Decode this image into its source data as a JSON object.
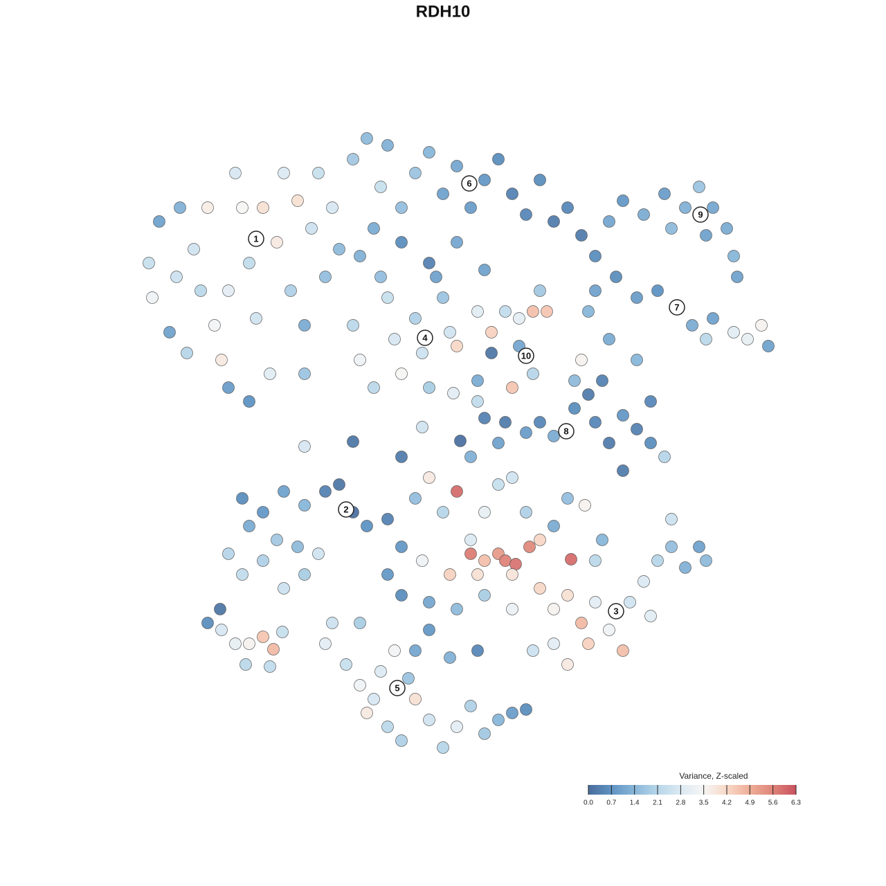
{
  "chart_data": {
    "type": "scatter",
    "title": "RDH10",
    "legend_title": "Variance, Z-scaled",
    "xlim": [
      0,
      128
    ],
    "ylim": [
      0,
      128
    ],
    "clim": [
      0,
      6.3
    ],
    "colorscale": [
      "#4a6d9c",
      "#5f93c3",
      "#88b6d9",
      "#b7d6e9",
      "#dceaf3",
      "#f6f5f4",
      "#f8d8c7",
      "#eeae97",
      "#de8479",
      "#c9515f"
    ],
    "cticks": [
      {
        "value": 0,
        "label": "0.0"
      },
      0.7,
      1.4,
      2.1,
      2.8,
      3.5,
      4.2,
      4.9,
      5.6,
      6.3
    ],
    "x": [
      23,
      21.5,
      22,
      24.5,
      26,
      28,
      29,
      30,
      31,
      32,
      33,
      34,
      35,
      36,
      37,
      38,
      39,
      40,
      41,
      42,
      43,
      44,
      45,
      46,
      47,
      48,
      49,
      36,
      27,
      33,
      25.5,
      44,
      51,
      53,
      55,
      56,
      58,
      60,
      62,
      64,
      66,
      68,
      70,
      72,
      74,
      76,
      78,
      80,
      82,
      84,
      86,
      54,
      58,
      62,
      66,
      70,
      52,
      88,
      90,
      93,
      96,
      99,
      101,
      103,
      105,
      106,
      106.5,
      97,
      102,
      86,
      89,
      92,
      95,
      98,
      100,
      103,
      106,
      108,
      110,
      111,
      102,
      88,
      92,
      85,
      51,
      52,
      54,
      56,
      57,
      58,
      60,
      61,
      62,
      64,
      65,
      66,
      63,
      55,
      69,
      71,
      73,
      75,
      77,
      79,
      75,
      77,
      74,
      71,
      78,
      69,
      83,
      85,
      87,
      83,
      86,
      88,
      90,
      92,
      94,
      96,
      90,
      94,
      78,
      80,
      76,
      84,
      73,
      44,
      51,
      58,
      61,
      66.5,
      70,
      65.5,
      69,
      35,
      38,
      41,
      44,
      47,
      49,
      51,
      36,
      40,
      43,
      33,
      35,
      38,
      41,
      44,
      46,
      53,
      56,
      58,
      60,
      62,
      64,
      66,
      68,
      70,
      72,
      74,
      76,
      78,
      80,
      82,
      84.5,
      68,
      70,
      72,
      73,
      74.5,
      76.5,
      82.5,
      65,
      69,
      74,
      61,
      56,
      58,
      62,
      66,
      70,
      74,
      68,
      72,
      78,
      80,
      82,
      84,
      86,
      88,
      90,
      91,
      93,
      95,
      97,
      99,
      101,
      102,
      94,
      86,
      80,
      82,
      77,
      85,
      87,
      97,
      48,
      47,
      50,
      52,
      54,
      53,
      56,
      58,
      60,
      62,
      64,
      66,
      68,
      70,
      72,
      74,
      76,
      60,
      62,
      65,
      69,
      57,
      55,
      59,
      52,
      30,
      32,
      34,
      36,
      38,
      39.5,
      35.5,
      39,
      40.8,
      31.8
    ],
    "y": [
      96,
      90,
      85,
      80,
      98,
      92,
      86,
      98,
      81,
      76,
      72,
      103,
      98,
      90,
      82,
      98,
      74,
      93,
      103,
      86,
      99,
      81,
      95,
      103,
      88,
      98,
      92,
      70,
      77,
      86,
      88,
      74,
      105,
      108,
      101,
      107,
      98,
      103,
      106,
      100,
      104,
      98,
      102,
      105,
      100,
      97,
      102,
      96,
      98,
      94,
      91,
      95,
      93,
      90,
      93,
      89,
      91,
      96,
      99,
      97,
      100,
      98,
      101,
      98,
      95,
      91,
      88,
      95,
      94,
      86,
      88,
      85,
      86,
      83.5,
      81,
      82,
      80,
      79,
      81,
      78,
      79,
      79,
      76,
      83,
      81,
      76,
      72,
      85,
      79,
      74,
      82,
      77,
      72,
      85,
      80,
      78,
      88,
      88,
      83,
      80,
      83,
      82,
      83,
      83,
      78,
      74,
      72,
      77,
      86,
      73,
      73,
      71,
      73,
      69,
      67,
      64,
      68,
      66,
      64,
      62,
      60,
      70,
      67,
      65,
      65.5,
      76,
      67,
      63.5,
      64.2,
      62,
      66.3,
      64.3,
      67.6,
      71.2,
      70,
      56,
      54,
      57,
      55,
      57,
      58,
      54,
      52,
      50,
      49,
      48,
      45,
      47,
      43,
      45,
      48,
      52,
      53,
      49,
      56,
      59,
      54,
      57,
      50,
      54,
      58,
      59,
      54,
      50,
      52,
      56,
      55,
      48,
      47,
      48,
      47,
      46.5,
      49,
      47.2,
      45,
      45,
      45,
      47,
      45,
      42,
      41,
      40,
      42,
      40,
      62,
      64,
      43,
      40,
      42,
      38,
      41,
      37,
      34,
      41,
      44,
      47,
      49,
      46,
      49,
      47,
      39,
      47,
      35,
      32,
      34,
      35,
      50,
      53,
      38,
      35,
      32,
      29,
      27,
      25,
      23,
      21,
      27,
      24,
      20,
      23,
      26,
      22,
      24,
      25,
      25.5,
      34,
      37,
      33,
      34,
      34,
      31,
      30,
      38,
      38,
      37,
      35,
      35,
      36,
      34.2,
      32,
      31.7,
      36.7,
      40
    ],
    "values": [
      1.0,
      2.4,
      3.3,
      1.0,
      1.3,
      2.6,
      2.2,
      3.7,
      3.4,
      3.8,
      0.9,
      2.7,
      3.5,
      2.3,
      2.6,
      4.0,
      2.9,
      3.8,
      2.8,
      2.0,
      4.0,
      1.2,
      2.5,
      2.4,
      1.6,
      2.7,
      1.5,
      0.7,
      2.1,
      3.0,
      2.5,
      1.7,
      1.8,
      1.5,
      2.4,
      1.3,
      1.6,
      1.7,
      1.4,
      1.0,
      1.1,
      0.9,
      0.8,
      0.6,
      0.4,
      0.5,
      0.6,
      0.3,
      0.5,
      0.3,
      0.6,
      1.2,
      0.6,
      0.4,
      1.1,
      1.0,
      1.3,
      1.1,
      0.8,
      1.2,
      0.9,
      1.3,
      1.7,
      1.1,
      1.2,
      1.4,
      1.0,
      1.5,
      1.0,
      1.0,
      0.6,
      0.9,
      0.7,
      2.6,
      1.2,
      1.0,
      2.9,
      3.1,
      3.6,
      1.0,
      2.2,
      1.2,
      1.4,
      1.4,
      2.2,
      3.3,
      2.2,
      2.4,
      2.7,
      3.5,
      2.0,
      2.5,
      1.9,
      1.7,
      2.6,
      4.2,
      1.0,
      1.6,
      2.9,
      4.3,
      2.3,
      3.0,
      4.6,
      4.5,
      1.1,
      2.1,
      4.5,
      0.2,
      1.8,
      1.2,
      1.5,
      0.3,
      0.4,
      0.6,
      0.5,
      0.3,
      0.8,
      0.4,
      0.6,
      2.1,
      0.3,
      0.5,
      0.5,
      1.2,
      0.9,
      3.6,
      0.3,
      2.7,
      0.2,
      0.3,
      2.6,
      0.1,
      0.4,
      3.0,
      2.3,
      0.6,
      0.8,
      1.0,
      1.4,
      0.4,
      0.2,
      0.1,
      1.2,
      1.8,
      1.5,
      2.1,
      2.3,
      2.0,
      2.5,
      1.9,
      2.6,
      0.7,
      0.4,
      0.8,
      1.6,
      3.8,
      2.1,
      5.9,
      2.8,
      3.1,
      2.4,
      2.6,
      2.0,
      4.2,
      1.2,
      1.6,
      3.6,
      5.7,
      4.6,
      5.2,
      5.6,
      5.8,
      5.5,
      5.9,
      4.3,
      4.0,
      3.9,
      3.3,
      0.8,
      0.6,
      1.1,
      1.5,
      1.9,
      3.2,
      1.3,
      1.0,
      4.2,
      3.6,
      4.0,
      4.7,
      3.0,
      3.3,
      4.6,
      2.6,
      2.8,
      2.1,
      1.6,
      1.3,
      1.0,
      1.5,
      2.9,
      2.2,
      3.0,
      3.8,
      2.5,
      4.3,
      1.4,
      2.5,
      2.5,
      3.0,
      2.4,
      3.3,
      2.7,
      3.8,
      2.2,
      2.0,
      4.0,
      2.6,
      2.1,
      3.0,
      2.0,
      1.8,
      1.4,
      0.9,
      0.6,
      1.1,
      0.8,
      1.3,
      0.5,
      3.4,
      2.8,
      1.7,
      1.9,
      0.6,
      2.7,
      3.1,
      3.6,
      4.5,
      4.7,
      2.2,
      2.3,
      2.4,
      0.2
    ],
    "cluster_labels": {
      "labels": [
        "1",
        "2",
        "3",
        "4",
        "5",
        "6",
        "7",
        "8",
        "9",
        "10"
      ],
      "x": [
        37,
        50,
        89,
        61.4,
        57.4,
        67.8,
        97.8,
        81.8,
        101.2,
        76
      ],
      "y": [
        93.5,
        54.4,
        39.7,
        79.2,
        28.6,
        101.5,
        83.6,
        65.7,
        97,
        76.6
      ]
    }
  }
}
